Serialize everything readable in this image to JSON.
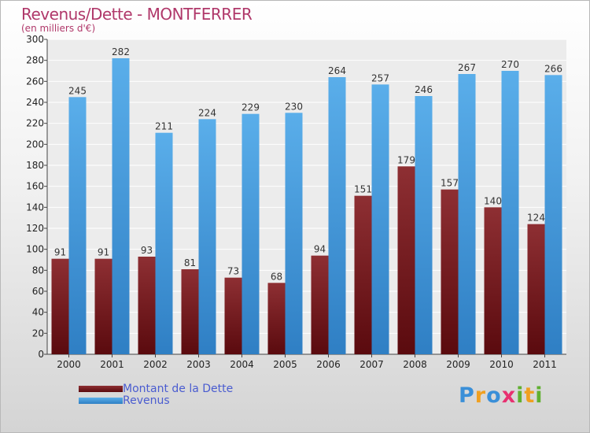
{
  "chart_data": {
    "type": "bar",
    "title": "Revenus/Dette - MONTFERRER",
    "subtitle": "(en milliers d'€)",
    "categories": [
      "2000",
      "2001",
      "2002",
      "2003",
      "2004",
      "2005",
      "2006",
      "2007",
      "2008",
      "2009",
      "2010",
      "2011"
    ],
    "series": [
      {
        "name": "Montant de la Dette",
        "values": [
          91,
          91,
          93,
          81,
          73,
          68,
          94,
          151,
          179,
          157,
          140,
          124
        ],
        "color": "#7a1e22"
      },
      {
        "name": "Revenus",
        "values": [
          245,
          282,
          211,
          224,
          229,
          230,
          264,
          257,
          246,
          267,
          270,
          266
        ],
        "color": "#4a9de0"
      }
    ],
    "ylim": [
      0,
      300
    ],
    "ytick_step": 20,
    "grid": true,
    "legend_position": "bottom-left",
    "xlabel": "",
    "ylabel": ""
  },
  "logo": {
    "letters": [
      "P",
      "r",
      "o",
      "x",
      "i",
      "t",
      "i"
    ],
    "colors": [
      "#3a8fd8",
      "#f0a020",
      "#3a8fd8",
      "#e83070",
      "#60b030",
      "#f0a020",
      "#60b030"
    ]
  }
}
